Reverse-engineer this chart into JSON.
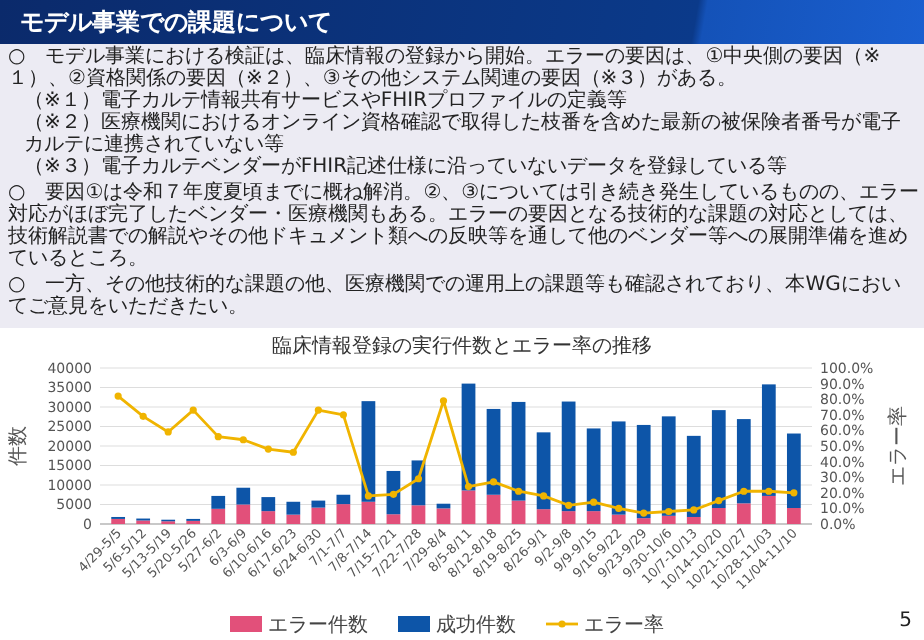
{
  "chart_data": {
    "type": "bar",
    "title": "モデル事業での課題について",
    "subtitle": "臨床情報登録の実行件数とエラー率の推移",
    "annotations": [
      "○　モデル事業における検証は、臨床情報の登録から開始。エラーの要因は、①中央側の要因（※１）、②資格関係の要因（※２）、③その他システム関連の要因（※３）がある。",
      "（※１）電子カルテ情報共有サービスやFHIRプロファイルの定義等",
      "（※２）医療機関におけるオンライン資格確認で取得した枝番を含めた最新の被保険者番号が電子カルテに連携されていない等",
      "（※３）電子カルテベンダーがFHIR記述仕様に沿っていないデータを登録している等",
      "○　要因①は令和７年度夏頃までに概ね解消。②、③については引き続き発生しているものの、エラー対応がほぼ完了したベンダー・医療機関もある。エラーの要因となる技術的な課題の対応としては、技術解説書での解説やその他ドキュメント類への反映等を通して他のベンダー等への展開準備を進めているところ。",
      "○　一方、その他技術的な課題の他、医療機関での運用上の課題等も確認されており、本WGにおいてご意見をいただきたい。",
      "5"
    ],
    "categories": [
      "4/29-5/5",
      "5/6-5/12",
      "5/13-5/19",
      "5/20-5/26",
      "5/27-6/2",
      "6/3-6/9",
      "6/10-6/16",
      "6/17-6/23",
      "6/24-6/30",
      "7/1-7/7",
      "7/8-7/14",
      "7/15-7/21",
      "7/22-7/28",
      "7/29-8/4",
      "8/5-8/11",
      "8/12-8/18",
      "8/19-8/25",
      "8/26-9/1",
      "9/2-9/8",
      "9/9-9/15",
      "9/16-9/22",
      "9/23-9/29",
      "9/30-10/6",
      "10/7-10/13",
      "10/14-10/20",
      "10/21-10/27",
      "10/28-11/03",
      "11/04-11/10"
    ],
    "stacked": true,
    "series": [
      {
        "name": "エラー件数",
        "color": "#e2507a",
        "values": [
          1300,
          900,
          700,
          800,
          3900,
          5000,
          3300,
          2400,
          4200,
          5100,
          5700,
          2500,
          4800,
          4000,
          8600,
          7500,
          6000,
          3800,
          3300,
          3300,
          2400,
          1500,
          2100,
          1800,
          4100,
          5300,
          7200,
          4100
        ]
      },
      {
        "name": "成功件数",
        "color": "#0d55a8",
        "values": [
          500,
          500,
          400,
          500,
          3300,
          4300,
          3600,
          3300,
          1800,
          2400,
          25800,
          11100,
          11500,
          1200,
          27400,
          22000,
          25300,
          19700,
          28100,
          21200,
          23900,
          23900,
          25500,
          20800,
          25100,
          21600,
          28600,
          19100
        ]
      },
      {
        "name": "エラー率",
        "type": "line",
        "axis": "y2",
        "color": "#f0b400",
        "values": [
          82,
          69,
          59,
          73,
          56,
          54,
          48,
          46,
          73,
          70,
          18,
          19,
          29,
          79,
          24,
          27,
          21,
          18,
          12,
          14,
          10,
          7,
          8,
          9,
          15,
          21,
          21,
          20
        ]
      }
    ],
    "ylabel": "件数",
    "y2label": "エラー率",
    "ylim": [
      0,
      40000
    ],
    "yticks": [
      0,
      5000,
      10000,
      15000,
      20000,
      25000,
      30000,
      35000,
      40000
    ],
    "y2lim": [
      0,
      100
    ],
    "y2ticks": [
      {
        "value": 0,
        "label": "0.0%"
      },
      {
        "value": 10,
        "label": "10.0%"
      },
      {
        "value": 20,
        "label": "20.0%"
      },
      {
        "value": 30,
        "label": "30.0%"
      },
      {
        "value": 40,
        "label": "40.0%"
      },
      {
        "value": 50,
        "label": "50.0%"
      },
      {
        "value": 60,
        "label": "60.0%"
      },
      {
        "value": 70,
        "label": "70.0%"
      },
      {
        "value": 80,
        "label": "80.0%"
      },
      {
        "value": 90,
        "label": "90.0%"
      },
      {
        "value": 100,
        "label": "100.0%"
      }
    ],
    "grid": "y",
    "legend": "bottom",
    "marker": "circle",
    "line_style": "solid"
  }
}
